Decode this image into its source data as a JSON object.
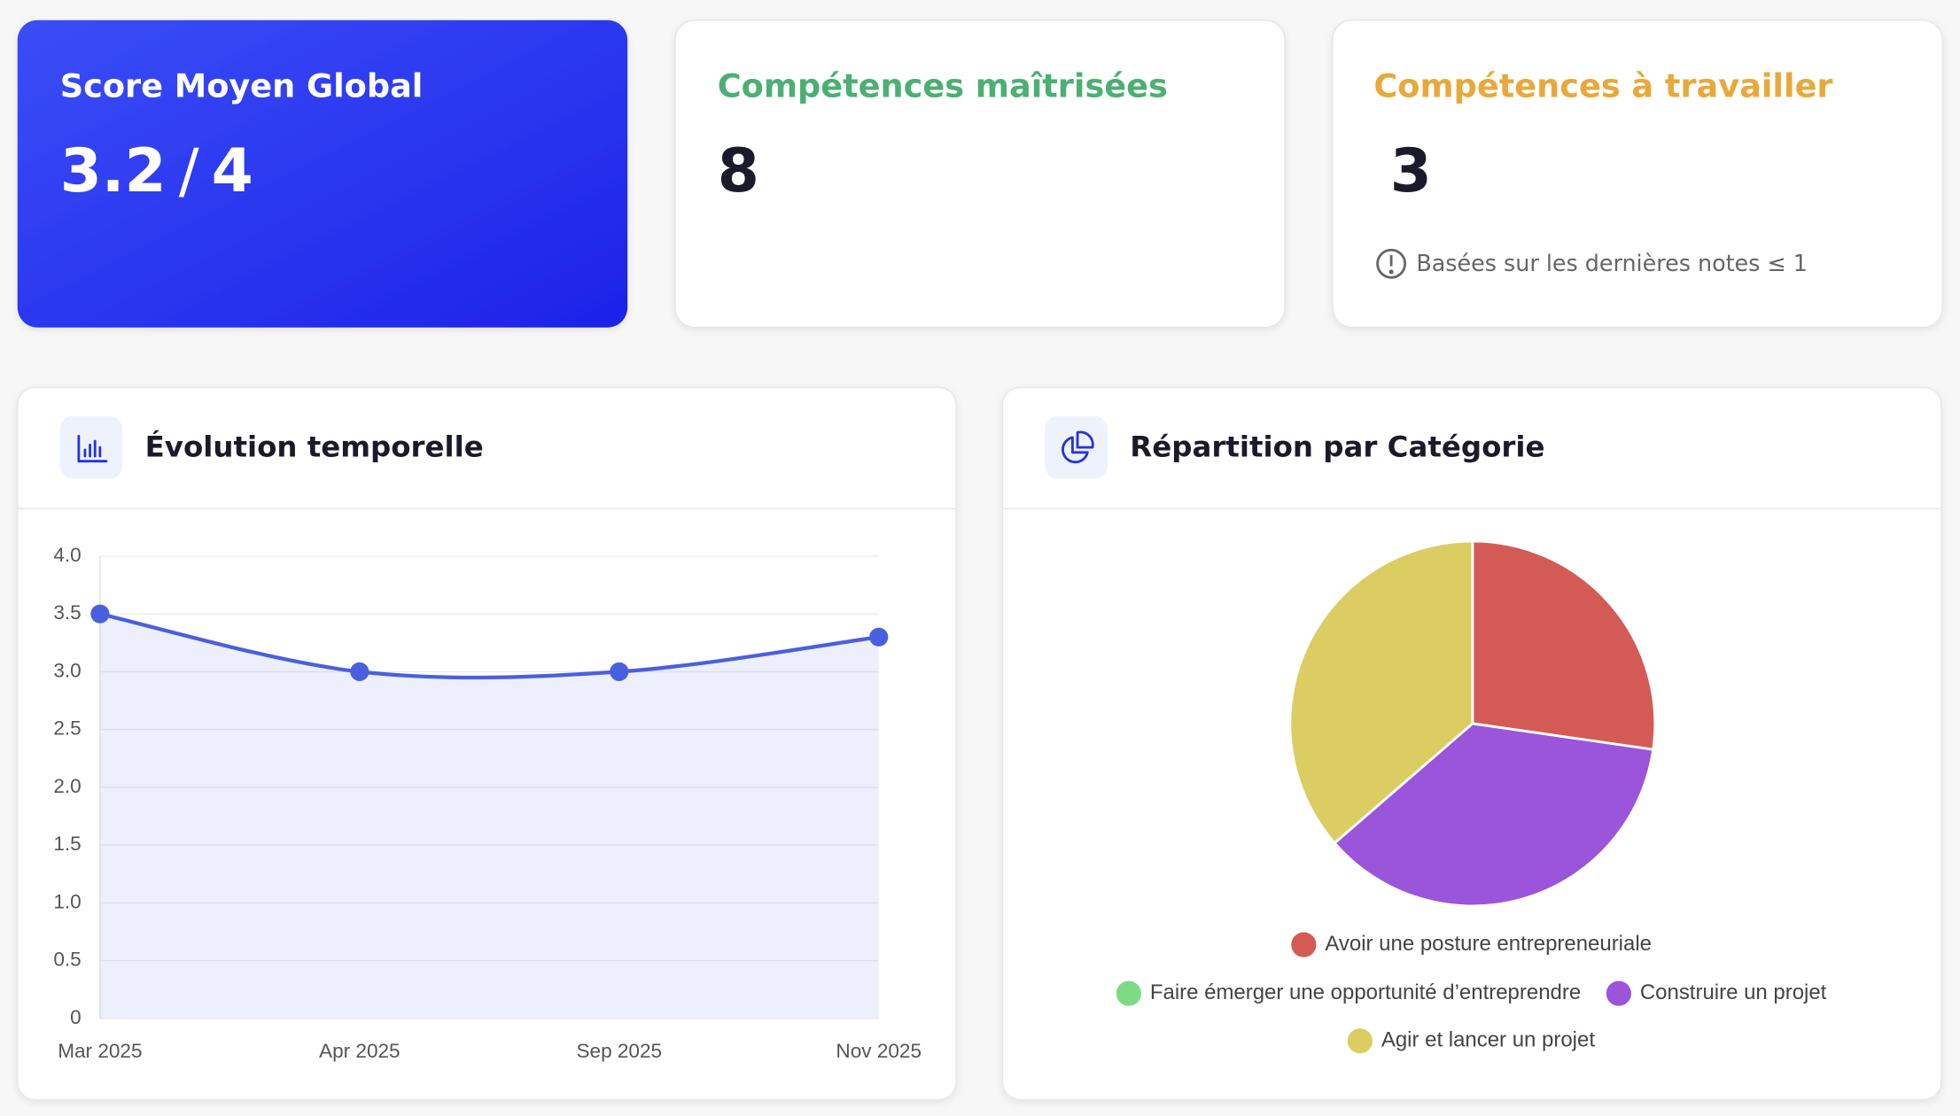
{
  "cards": [
    {
      "title": "Score Moyen Global",
      "value": 3.2,
      "separator": "/",
      "max": 4
    },
    {
      "title": "Compétences maîtrisées",
      "value": 8
    },
    {
      "title": "Compétences à travailler",
      "value": 3,
      "note": "Basées sur les dernières notes ≤ 1"
    }
  ],
  "chart_data": [
    {
      "type": "line",
      "title": "Évolution temporelle",
      "categories": [
        "Mar 2025",
        "Apr 2025",
        "Sep 2025",
        "Nov 2025"
      ],
      "series": [
        {
          "color": "#4a5fe0",
          "values": [
            3.5,
            3.0,
            3.0,
            3.3
          ]
        }
      ],
      "ylim": [
        0,
        4
      ],
      "yticks": [
        0,
        0.5,
        {
          "value": 1,
          "label": "1.0"
        },
        1.5,
        {
          "value": 2,
          "label": "2.0"
        },
        2.5,
        {
          "value": 3,
          "label": "3.0"
        },
        3.5,
        {
          "value": 4,
          "label": "4.0"
        }
      ],
      "grid": true
    },
    {
      "type": "pie",
      "title": "Répartition par Catégorie",
      "categories": [
        "Avoir une posture entrepreneuriale",
        "Faire émerger une opportunité d’entreprendre",
        "Construire un projet",
        "Agir et lancer un projet"
      ],
      "values": [
        3,
        0,
        4,
        4
      ],
      "colors": [
        "#d45b55",
        "#7ddb86",
        "#9a55da",
        "#dccd62"
      ],
      "legend": "bottom"
    }
  ]
}
